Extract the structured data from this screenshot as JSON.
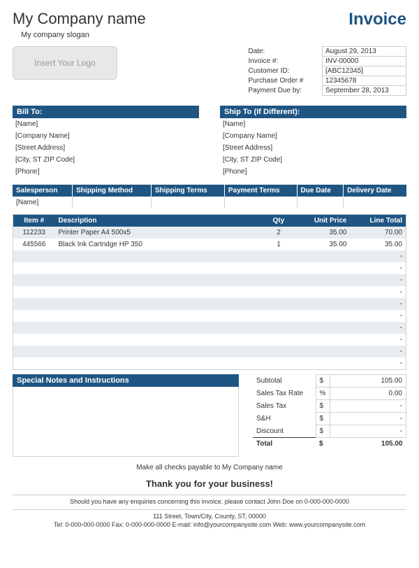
{
  "colors": {
    "primary": "#1f5582",
    "stripe": "#e8ecef",
    "border": "#d0d0d0"
  },
  "header": {
    "company_name": "My Company name",
    "slogan": "My company slogan",
    "title": "Invoice",
    "logo_placeholder": "Insert Your Logo"
  },
  "meta": {
    "rows": [
      {
        "label": "Date:",
        "value": "August 29, 2013"
      },
      {
        "label": "Invoice #:",
        "value": "INV-00000"
      },
      {
        "label": "Customer ID:",
        "value": "[ABC12345]"
      },
      {
        "label": "Purchase Order #",
        "value": "12345678"
      },
      {
        "label": "Payment Due by:",
        "value": "September 28, 2013"
      }
    ]
  },
  "bill_to": {
    "header": "Bill To:",
    "lines": [
      "[Name]",
      "[Company Name]",
      "[Street Address]",
      "[City, ST  ZIP Code]",
      "[Phone]"
    ]
  },
  "ship_to": {
    "header": "Ship To (If Different):",
    "lines": [
      "[Name]",
      "[Company Name]",
      "[Street Address]",
      "[City, ST  ZIP Code]",
      "[Phone]"
    ]
  },
  "order_info": {
    "headers": [
      "Salesperson",
      "Shipping Method",
      "Shipping Terms",
      "Payment Terms",
      "Due Date",
      "Delivery Date"
    ],
    "row": [
      "[Name]",
      "",
      "",
      "",
      "",
      ""
    ]
  },
  "items": {
    "headers": {
      "item": "Item #",
      "desc": "Description",
      "qty": "Qty",
      "price": "Unit Price",
      "total": "Line Total"
    },
    "rows": [
      {
        "item": "112233",
        "desc": "Printer Paper A4 500x5",
        "qty": "2",
        "price": "35.00",
        "total": "70.00"
      },
      {
        "item": "445566",
        "desc": "Black Ink Cartridge HP 350",
        "qty": "1",
        "price": "35.00",
        "total": "35.00"
      },
      {
        "item": "",
        "desc": "",
        "qty": "",
        "price": "",
        "total": "-"
      },
      {
        "item": "",
        "desc": "",
        "qty": "",
        "price": "",
        "total": "-"
      },
      {
        "item": "",
        "desc": "",
        "qty": "",
        "price": "",
        "total": "-"
      },
      {
        "item": "",
        "desc": "",
        "qty": "",
        "price": "",
        "total": "-"
      },
      {
        "item": "",
        "desc": "",
        "qty": "",
        "price": "",
        "total": "-"
      },
      {
        "item": "",
        "desc": "",
        "qty": "",
        "price": "",
        "total": "-"
      },
      {
        "item": "",
        "desc": "",
        "qty": "",
        "price": "",
        "total": "-"
      },
      {
        "item": "",
        "desc": "",
        "qty": "",
        "price": "",
        "total": "-"
      },
      {
        "item": "",
        "desc": "",
        "qty": "",
        "price": "",
        "total": "-"
      },
      {
        "item": "",
        "desc": "",
        "qty": "",
        "price": "",
        "total": "-"
      }
    ]
  },
  "notes": {
    "header": "Special Notes and Instructions"
  },
  "totals": {
    "rows": [
      {
        "label": "Subtotal",
        "sym": "$",
        "value": "105.00"
      },
      {
        "label": "Sales Tax Rate",
        "sym": "%",
        "value": "0.00"
      },
      {
        "label": "Sales Tax",
        "sym": "$",
        "value": "-"
      },
      {
        "label": "S&H",
        "sym": "$",
        "value": "-"
      },
      {
        "label": "Discount",
        "sym": "$",
        "value": "-"
      }
    ],
    "grand": {
      "label": "Total",
      "sym": "$",
      "value": "105.00"
    }
  },
  "footer": {
    "payable": "Make all checks payable to My Company name",
    "thanks": "Thank you for your business!",
    "enquiry": "Should you have any enquiries concerning this invoice, please contact John Doe on 0-000-000-0000",
    "address": "111 Street, Town/City, County, ST, 00000",
    "contact": "Tel: 0-000-000-0000 Fax: 0-000-000-0000 E-mail: info@yourcompanysite.com Web: www.yourcompanysite.com"
  }
}
